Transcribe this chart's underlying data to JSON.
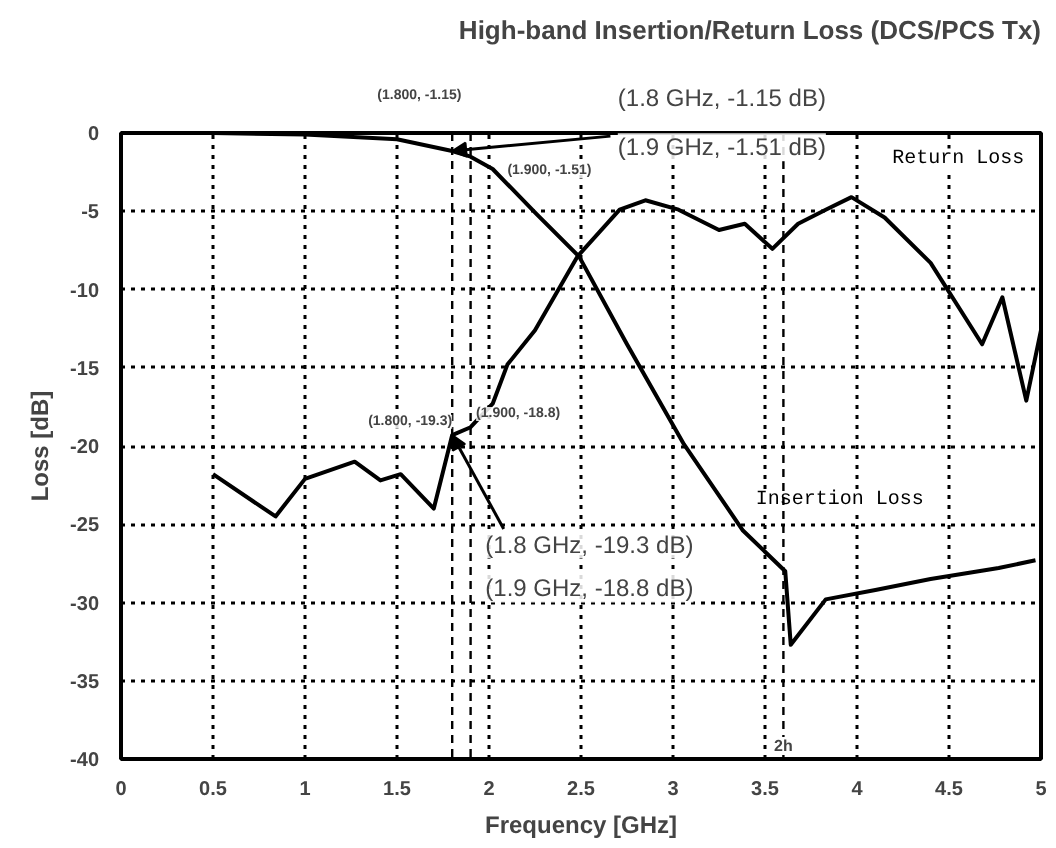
{
  "chart_data": {
    "type": "line",
    "title": "High-band Insertion/Return Loss (DCS/PCS Tx)",
    "xlabel": "Frequency [GHz]",
    "ylabel": "Loss [dB]",
    "xlim": [
      0,
      5
    ],
    "ylim": [
      -40,
      0
    ],
    "xticks": [
      0,
      0.5,
      1,
      1.5,
      2,
      2.5,
      3,
      3.5,
      4,
      4.5,
      5
    ],
    "yticks": [
      0,
      -5,
      -10,
      -15,
      -20,
      -25,
      -30,
      -35,
      -40
    ],
    "grid": true,
    "line_style": "solid",
    "marker": "none",
    "series": [
      {
        "name": "Insertion Loss",
        "color": "#000000",
        "x": [
          0.5,
          1.0,
          1.5,
          1.8,
          1.9,
          2.02,
          2.26,
          2.49,
          2.75,
          3.06,
          3.38,
          3.61,
          3.64,
          3.83,
          4.1,
          4.4,
          4.77,
          4.97
        ],
        "values": [
          0,
          -0.1,
          -0.4,
          -1.15,
          -1.51,
          -2.3,
          -5.2,
          -7.9,
          -13.5,
          -19.9,
          -25.4,
          -28,
          -32.7,
          -29.8,
          -29.2,
          -28.5,
          -27.8,
          -27.3
        ]
      },
      {
        "name": "Return Loss",
        "color": "#000000",
        "x": [
          0.5,
          0.84,
          1.0,
          1.27,
          1.41,
          1.52,
          1.7,
          1.8,
          1.9,
          2.02,
          2.1,
          2.25,
          2.48,
          2.71,
          2.85,
          3.03,
          3.25,
          3.39,
          3.54,
          3.68,
          3.83,
          3.97,
          4.15,
          4.4,
          4.68,
          4.79,
          4.92,
          5.0
        ],
        "values": [
          -21.8,
          -24.5,
          -22.1,
          -21,
          -22.2,
          -21.8,
          -24,
          -19.3,
          -18.8,
          -17.3,
          -14.8,
          -12.6,
          -7.9,
          -4.9,
          -4.3,
          -4.9,
          -6.2,
          -5.8,
          -7.4,
          -5.8,
          -4.9,
          -4.1,
          -5.4,
          -8.3,
          -13.5,
          -10.5,
          -17.1,
          -12.6
        ]
      }
    ],
    "ref_lines": [
      {
        "axis": "x",
        "value": 1.8,
        "line_style": "dashed"
      },
      {
        "axis": "x",
        "value": 1.9,
        "line_style": "dashed"
      },
      {
        "axis": "x",
        "value": 3.6,
        "label": "2h",
        "line_style": "dashed"
      }
    ],
    "annotations": [
      "(1.800, -1.15)",
      "(1.900, -1.51)",
      "(1.800, -19.3)",
      "(1.900, -18.8)",
      {
        "text": "(1.8 GHz, -1.15 dB)",
        "x": 1.8,
        "y": -1.15
      },
      "(1.9 GHz, -1.51 dB)",
      {
        "text": "(1.8 GHz, -19.3 dB)",
        "x": 1.8,
        "y": -19.3
      },
      "(1.9 GHz, -18.8 dB)"
    ]
  }
}
